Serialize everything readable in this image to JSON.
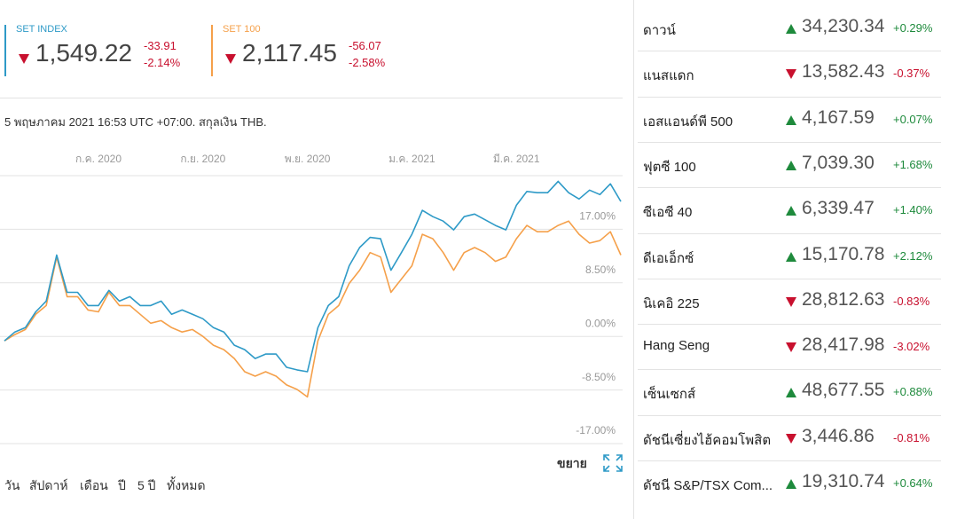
{
  "quotes": [
    {
      "name": "SET INDEX",
      "price": "1,549.22",
      "change": "-33.91",
      "change_pct": "-2.14%",
      "color": "#2e9ac7"
    },
    {
      "name": "SET 100",
      "price": "2,117.45",
      "change": "-56.07",
      "change_pct": "-2.58%",
      "color": "#f5a04a"
    }
  ],
  "date_note": "5 พฤษภาคม 2021 16:53 UTC +07:00. สกุลเงิน THB.",
  "chart_data": {
    "type": "line",
    "categories": [
      null,
      null,
      null,
      null,
      null,
      null,
      null,
      null,
      null,
      "ก.ค. 2020",
      null,
      null,
      null,
      null,
      null,
      null,
      null,
      null,
      null,
      "ก.ย. 2020",
      null,
      null,
      null,
      null,
      null,
      null,
      null,
      null,
      null,
      "พ.ย. 2020",
      null,
      null,
      null,
      null,
      null,
      null,
      null,
      null,
      null,
      "ม.ค. 2021",
      null,
      null,
      null,
      null,
      null,
      null,
      null,
      null,
      null,
      "มี.ค. 2021",
      null,
      null,
      null,
      null,
      null,
      null,
      null,
      null,
      null,
      null
    ],
    "series": [
      {
        "name": "SET INDEX",
        "color": "#2e9ac7",
        "values": [
          -0.7,
          0.7,
          1.4,
          3.9,
          5.6,
          12.9,
          7.0,
          7.0,
          4.9,
          4.9,
          7.3,
          5.6,
          6.3,
          4.9,
          4.9,
          5.6,
          3.5,
          4.2,
          3.5,
          2.8,
          1.4,
          0.7,
          -1.4,
          -2.1,
          -3.5,
          -2.8,
          -2.8,
          -4.9,
          -5.3,
          -5.6,
          1.4,
          4.9,
          6.3,
          11.2,
          14.1,
          15.7,
          15.5,
          10.5,
          13.3,
          16.2,
          20.0,
          19.0,
          18.3,
          16.9,
          19.0,
          19.4,
          18.5,
          17.6,
          16.9,
          20.8,
          23.0,
          22.8,
          22.8,
          24.6,
          22.8,
          21.8,
          23.2,
          22.5,
          24.2,
          21.4
        ]
      },
      {
        "name": "SET 100",
        "color": "#f5a04a",
        "values": [
          -0.7,
          0.3,
          1.1,
          3.5,
          4.9,
          12.6,
          6.3,
          6.3,
          4.2,
          3.9,
          7.0,
          4.9,
          4.9,
          3.5,
          2.1,
          2.5,
          1.4,
          0.7,
          1.1,
          0.0,
          -1.4,
          -2.1,
          -3.5,
          -5.6,
          -6.3,
          -5.6,
          -6.3,
          -7.7,
          -8.4,
          -9.6,
          -0.7,
          3.5,
          4.9,
          8.4,
          10.5,
          13.3,
          12.6,
          7.0,
          9.1,
          11.2,
          16.2,
          15.5,
          13.3,
          10.5,
          13.3,
          14.1,
          13.3,
          11.9,
          12.6,
          15.5,
          17.6,
          16.6,
          16.6,
          17.6,
          18.3,
          16.2,
          14.8,
          15.2,
          16.6,
          12.9
        ]
      }
    ],
    "ylim": [
      -17,
      25.5
    ],
    "yticks": [
      {
        "value": 17,
        "label": "17.00%"
      },
      {
        "value": 8.5,
        "label": "8.50%"
      },
      {
        "value": 0,
        "label": "0.00%"
      },
      {
        "value": -8.5,
        "label": "-8.50%"
      },
      {
        "value": -17,
        "label": "-17.00%"
      }
    ],
    "grid": true
  },
  "expand_label": "ขยาย",
  "ranges": [
    "วัน",
    "สัปดาห์",
    "เดือน",
    "ปี",
    "5 ปี",
    "ทั้งหมด"
  ],
  "indices": [
    {
      "name": "ดาวน์",
      "value": "34,230.34",
      "change": "+0.29%"
    },
    {
      "name": "แนสแดก",
      "value": "13,582.43",
      "change": "-0.37%"
    },
    {
      "name": "เอสแอนด์พี 500",
      "value": "4,167.59",
      "change": "+0.07%"
    },
    {
      "name": "ฟุตซี 100",
      "value": "7,039.30",
      "change": "+1.68%"
    },
    {
      "name": "ซีเอซี 40",
      "value": "6,339.47",
      "change": "+1.40%"
    },
    {
      "name": "ดีเอเอ็กซ์",
      "value": "15,170.78",
      "change": "+2.12%"
    },
    {
      "name": "นิเคอิ 225",
      "value": "28,812.63",
      "change": "-0.83%"
    },
    {
      "name": "Hang Seng",
      "value": "28,417.98",
      "change": "-3.02%"
    },
    {
      "name": "เซ็นเซกส์",
      "value": "48,677.55",
      "change": "+0.88%"
    },
    {
      "name": "ดัชนีเซี่ยงไฮ้คอมโพสิต",
      "value": "3,446.86",
      "change": "-0.81%"
    },
    {
      "name": "ดัชนี S&P/TSX Com...",
      "value": "19,310.74",
      "change": "+0.64%"
    }
  ]
}
